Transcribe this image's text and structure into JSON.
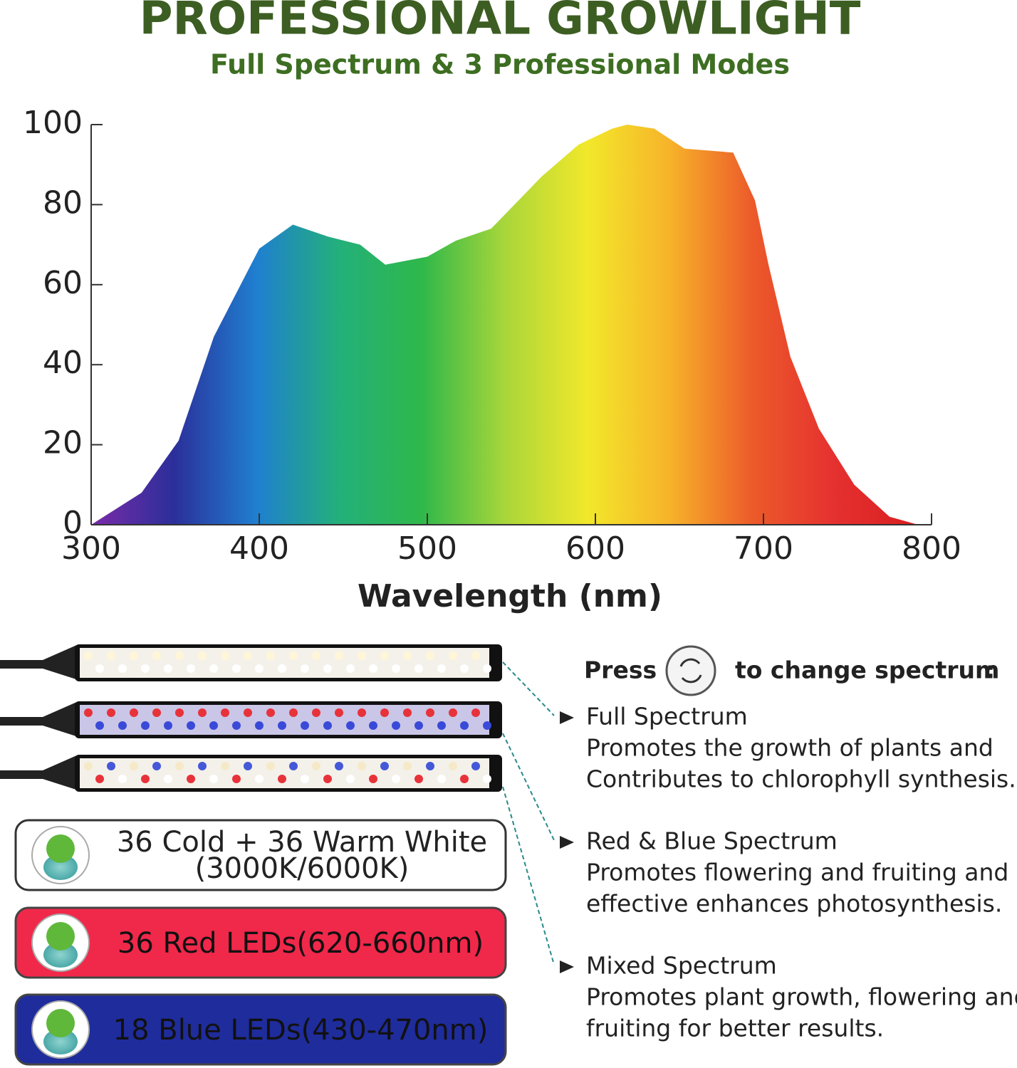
{
  "chart_data": {
    "type": "area",
    "title": "PROFESSIONAL GROWLIGHT",
    "subtitle": "Full Spectrum & 3 Professional Modes",
    "x_label": "Wavelength (nm)",
    "x": [
      300,
      330,
      352,
      373,
      400,
      420,
      441,
      460,
      475,
      500,
      517,
      538,
      568,
      590,
      610,
      619,
      635,
      653,
      682,
      695,
      703,
      716,
      733,
      754,
      775,
      792
    ],
    "values": [
      0,
      8,
      21,
      47,
      69,
      75,
      72,
      70,
      65,
      67,
      71,
      74,
      87,
      95,
      99,
      100,
      99,
      94,
      93,
      81,
      65,
      42,
      24,
      10,
      2,
      0
    ],
    "colors": [
      "#7a2aa8",
      "#2b2f9a",
      "#1f7fd0",
      "#23b07a",
      "#2fb84a",
      "#a8d63a",
      "#f2e82a",
      "#f7b32a",
      "#ec5a2a",
      "#e53030",
      "#d81e20"
    ],
    "xlim": [
      300,
      800
    ],
    "xticks": [
      300,
      400,
      500,
      600,
      700,
      800
    ],
    "ylim": [
      0,
      100
    ],
    "yticks": [
      0,
      20,
      40,
      60,
      80,
      100
    ]
  },
  "lights": [
    {
      "label": "36 Cold + 36 Warm White",
      "sublabel": "(3000K/6000K)",
      "color": "#ffffff"
    },
    {
      "label": "36 Red LEDs(620-660nm)",
      "color": "#f0284a"
    },
    {
      "label": "18 Blue LEDs(430-470nm)",
      "color": "#1f2c9c"
    }
  ],
  "instruction": {
    "press": "Press",
    "rest": "to change spectrum",
    "colon": ":"
  },
  "modes": [
    {
      "name": "Full Spectrum",
      "lines": [
        "Promotes the growth of plants and",
        "Contributes to chlorophyll synthesis."
      ]
    },
    {
      "name": "Red & Blue Spectrum",
      "lines": [
        "Promotes flowering and fruiting and",
        "effective enhances photosynthesis."
      ]
    },
    {
      "name": "Mixed Spectrum",
      "lines": [
        "Promotes plant growth, flowering and",
        "fruiting for better results."
      ]
    }
  ]
}
